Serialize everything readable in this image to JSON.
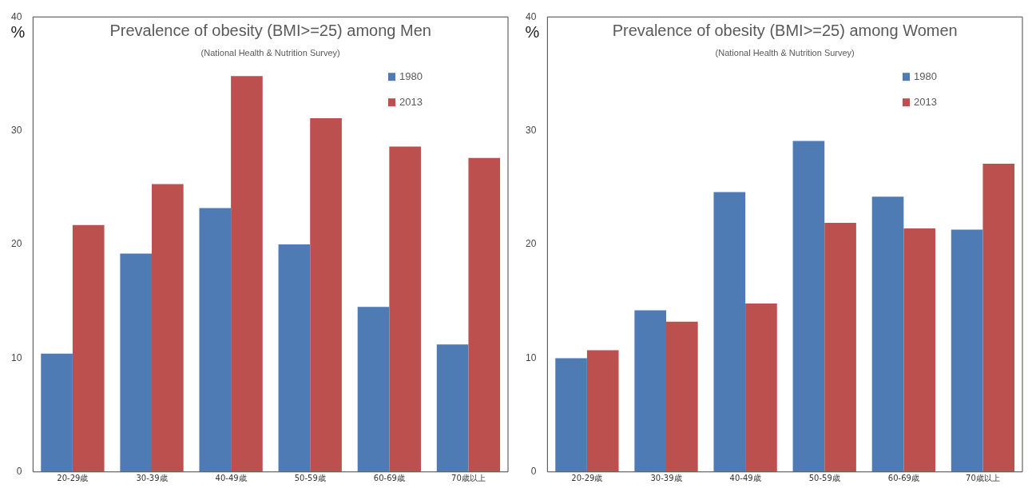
{
  "chart_data": [
    {
      "type": "bar",
      "title": "Prevalence of obesity (BMI>=25) among Men",
      "subtitle": "(National Health & Nutrition Survey)",
      "ylabel": "%",
      "categories": [
        "20-29歳",
        "30-39歳",
        "40-49歳",
        "50-59歳",
        "60-69歳",
        "70歳以上"
      ],
      "series": [
        {
          "name": "1980",
          "color": "#4f7bb5",
          "values": [
            10.4,
            19.2,
            23.2,
            20.0,
            14.5,
            11.2
          ]
        },
        {
          "name": "2013",
          "color": "#bc504f",
          "values": [
            21.7,
            25.3,
            34.8,
            31.1,
            28.6,
            27.6
          ]
        }
      ],
      "ylim": [
        0,
        40
      ],
      "yticks": [
        0,
        10,
        20,
        30,
        40
      ],
      "grid": false,
      "legend": "top right"
    },
    {
      "type": "bar",
      "title": "Prevalence of obesity (BMI>=25) among Women",
      "subtitle": "(National Health & Nutrition Survey)",
      "ylabel": "%",
      "categories": [
        "20-29歳",
        "30-39歳",
        "40-49歳",
        "50-59歳",
        "60-69歳",
        "70歳以上"
      ],
      "series": [
        {
          "name": "1980",
          "color": "#4f7bb5",
          "values": [
            10.0,
            14.2,
            24.6,
            29.1,
            24.2,
            21.3
          ]
        },
        {
          "name": "2013",
          "color": "#bc504f",
          "values": [
            10.7,
            13.2,
            14.8,
            21.9,
            21.4,
            27.1
          ]
        }
      ],
      "ylim": [
        0,
        40
      ],
      "yticks": [
        0,
        10,
        20,
        30,
        40
      ],
      "grid": false,
      "legend": "top right"
    }
  ]
}
